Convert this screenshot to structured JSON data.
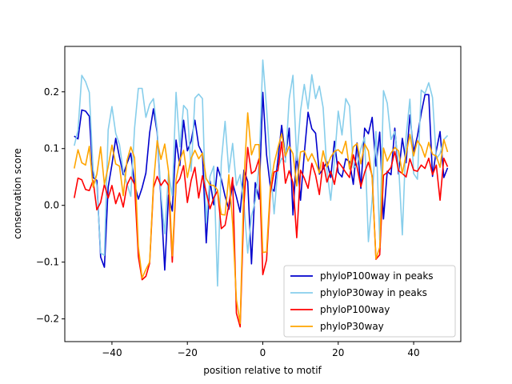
{
  "chart_data": {
    "type": "line",
    "title": "",
    "xlabel": "position relative to motif",
    "ylabel": "conservation score",
    "xlim": [
      -52.5,
      52.5
    ],
    "ylim": [
      -0.24,
      0.28
    ],
    "grid": false,
    "legend_position": "lower-right",
    "x_ticks": [
      -40,
      -20,
      0,
      20,
      40
    ],
    "y_ticks": [
      -0.2,
      -0.1,
      0.0,
      0.1,
      0.2
    ],
    "x_tick_labels": [
      "−40",
      "−20",
      "0",
      "20",
      "40"
    ],
    "y_tick_labels": [
      "−0.2",
      "−0.1",
      "0.0",
      "0.1",
      "0.2"
    ],
    "x_start": -50,
    "x_step": 1,
    "series": [
      {
        "name": "phyloP100way in peaks",
        "color": "#0000cd",
        "values": [
          0.122,
          0.117,
          0.168,
          0.166,
          0.157,
          0.049,
          0.044,
          -0.091,
          -0.109,
          0.032,
          0.072,
          0.118,
          0.085,
          0.054,
          0.074,
          0.092,
          0.037,
          0.011,
          0.031,
          0.057,
          0.128,
          0.17,
          0.128,
          0.011,
          -0.114,
          0.018,
          -0.01,
          0.115,
          0.07,
          0.15,
          0.096,
          0.113,
          0.15,
          0.105,
          0.091,
          -0.066,
          0.043,
          0.001,
          0.067,
          0.046,
          0.016,
          -0.007,
          0.039,
          0.015,
          -0.012,
          0.062,
          0.042,
          -0.103,
          0.04,
          0.011,
          0.199,
          0.089,
          0.033,
          0.025,
          0.08,
          0.141,
          0.084,
          0.136,
          -0.017,
          0.095,
          0.009,
          0.091,
          0.164,
          0.135,
          0.127,
          0.055,
          0.064,
          0.077,
          0.049,
          0.113,
          0.058,
          0.05,
          0.082,
          0.077,
          0.037,
          0.11,
          0.03,
          0.136,
          0.126,
          0.155,
          0.069,
          0.129,
          -0.024,
          0.06,
          0.054,
          0.136,
          0.055,
          0.118,
          0.075,
          0.159,
          0.094,
          0.122,
          0.162,
          0.195,
          0.195,
          0.051,
          0.096,
          0.13,
          0.049,
          0.066
        ]
      },
      {
        "name": "phyloP30way in peaks",
        "color": "#87ceeb",
        "values": [
          0.105,
          0.132,
          0.229,
          0.218,
          0.199,
          0.063,
          0.035,
          -0.084,
          -0.088,
          0.133,
          0.174,
          0.127,
          0.107,
          0.06,
          0.038,
          0.016,
          0.136,
          0.206,
          0.206,
          0.155,
          0.178,
          0.188,
          0.132,
          0.02,
          -0.05,
          0.057,
          0.017,
          0.199,
          0.103,
          0.176,
          0.168,
          0.06,
          0.189,
          0.196,
          0.188,
          -0.031,
          0.051,
          0.069,
          -0.142,
          0.077,
          0.148,
          0.058,
          0.109,
          0.035,
          0.054,
          0.001,
          -0.084,
          -0.019,
          0.008,
          0.07,
          0.256,
          0.171,
          0.069,
          -0.015,
          0.066,
          0.083,
          0.076,
          0.188,
          0.229,
          0.079,
          0.166,
          0.213,
          0.17,
          0.23,
          0.188,
          0.21,
          0.172,
          0.061,
          0.009,
          0.079,
          0.166,
          0.124,
          0.188,
          0.175,
          0.066,
          0.071,
          0.1,
          0.12,
          -0.064,
          0.01,
          0.13,
          -0.061,
          0.202,
          0.18,
          0.116,
          0.13,
          0.072,
          -0.052,
          0.122,
          0.187,
          0.056,
          0.046,
          0.203,
          0.197,
          0.216,
          0.19,
          0.082,
          0.091,
          0.116,
          0.123
        ]
      },
      {
        "name": "phyloP100way",
        "color": "#ff0000",
        "values": [
          0.013,
          0.048,
          0.045,
          0.028,
          0.026,
          0.044,
          -0.008,
          0.005,
          0.037,
          0.013,
          0.035,
          0.003,
          0.022,
          -0.003,
          0.036,
          0.05,
          0.037,
          -0.09,
          -0.131,
          -0.125,
          -0.102,
          0.031,
          0.051,
          0.035,
          0.045,
          0.035,
          -0.1,
          0.037,
          0.047,
          0.07,
          0.005,
          0.044,
          0.067,
          0.013,
          0.052,
          0.023,
          -0.006,
          0.013,
          0.026,
          -0.041,
          -0.035,
          0.001,
          0.049,
          -0.19,
          -0.214,
          0.003,
          0.102,
          0.056,
          0.061,
          0.082,
          -0.122,
          -0.096,
          0.022,
          0.059,
          0.061,
          0.112,
          0.039,
          0.061,
          0.04,
          -0.057,
          0.062,
          0.048,
          0.03,
          0.074,
          0.053,
          0.019,
          0.076,
          0.041,
          0.06,
          0.037,
          0.077,
          0.068,
          0.058,
          0.049,
          0.089,
          0.067,
          0.033,
          0.058,
          0.076,
          0.052,
          -0.095,
          -0.087,
          0.053,
          0.058,
          0.067,
          0.095,
          0.061,
          0.056,
          0.05,
          0.082,
          0.062,
          0.06,
          0.071,
          0.065,
          0.083,
          0.054,
          0.071,
          0.009,
          0.083,
          0.068
        ]
      },
      {
        "name": "phyloP30way",
        "color": "#ffa500",
        "values": [
          0.065,
          0.098,
          0.075,
          0.071,
          0.104,
          0.032,
          0.055,
          0.103,
          0.037,
          0.068,
          0.106,
          0.073,
          0.069,
          0.017,
          0.079,
          0.103,
          0.084,
          -0.073,
          -0.128,
          -0.113,
          -0.1,
          0.037,
          0.114,
          0.081,
          0.108,
          0.06,
          -0.089,
          0.045,
          0.08,
          0.097,
          0.049,
          0.083,
          0.097,
          0.082,
          0.092,
          0.047,
          0.036,
          0.035,
          0.027,
          -0.016,
          -0.017,
          0.054,
          -0.032,
          -0.166,
          -0.208,
          0.045,
          0.163,
          0.089,
          0.107,
          0.107,
          -0.083,
          -0.082,
          0.032,
          0.074,
          0.101,
          0.126,
          0.087,
          0.104,
          0.091,
          0.034,
          0.094,
          0.096,
          0.078,
          0.091,
          0.076,
          0.057,
          0.096,
          0.068,
          0.085,
          0.095,
          0.098,
          0.091,
          0.113,
          0.064,
          0.103,
          0.109,
          0.073,
          0.108,
          0.096,
          0.048,
          -0.094,
          -0.074,
          0.101,
          0.078,
          0.092,
          0.102,
          0.096,
          0.056,
          0.09,
          0.125,
          0.087,
          0.114,
          0.104,
          0.085,
          0.111,
          0.09,
          0.087,
          0.067,
          0.116,
          0.094
        ]
      }
    ]
  }
}
